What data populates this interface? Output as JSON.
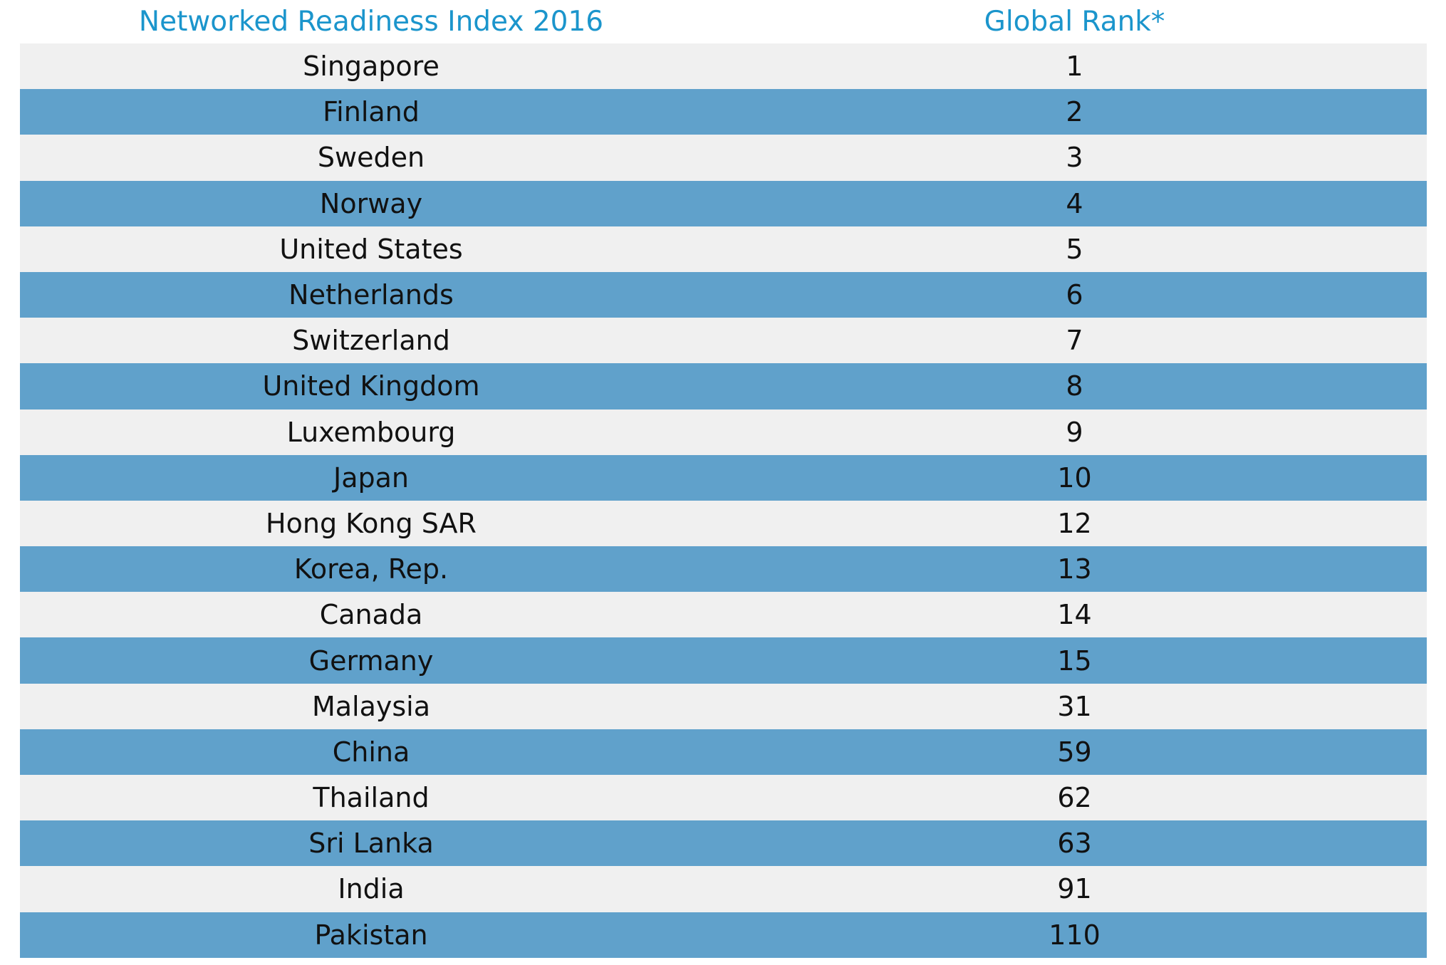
{
  "chart_data": {
    "type": "table",
    "colors": {
      "header_text": "#1b95cc",
      "row_light": "#f0f0f0",
      "row_blue": "#60a1cb",
      "cell_text": "#111111"
    },
    "columns": [
      "Networked Readiness Index 2016",
      "Global Rank*"
    ],
    "rows": [
      [
        "Singapore",
        "1"
      ],
      [
        "Finland",
        "2"
      ],
      [
        "Sweden",
        "3"
      ],
      [
        "Norway",
        "4"
      ],
      [
        "United States",
        "5"
      ],
      [
        "Netherlands",
        "6"
      ],
      [
        "Switzerland",
        "7"
      ],
      [
        "United Kingdom",
        "8"
      ],
      [
        "Luxembourg",
        "9"
      ],
      [
        "Japan",
        "10"
      ],
      [
        "Hong Kong SAR",
        "12"
      ],
      [
        "Korea, Rep.",
        "13"
      ],
      [
        "Canada",
        "14"
      ],
      [
        "Germany",
        "15"
      ],
      [
        "Malaysia",
        "31"
      ],
      [
        "China",
        "59"
      ],
      [
        "Thailand",
        "62"
      ],
      [
        "Sri Lanka",
        "63"
      ],
      [
        "India",
        "91"
      ],
      [
        "Pakistan",
        "110"
      ]
    ]
  }
}
